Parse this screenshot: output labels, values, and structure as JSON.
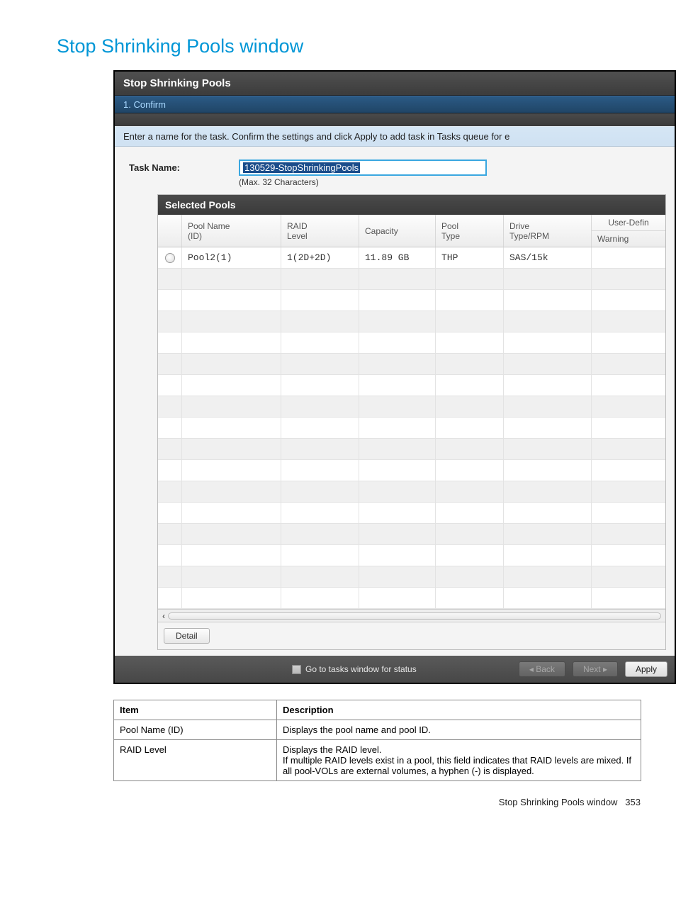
{
  "page": {
    "title": "Stop Shrinking Pools window",
    "footer_text": "Stop Shrinking Pools window",
    "page_number": "353"
  },
  "window": {
    "title": "Stop Shrinking Pools",
    "step_label": "1. Confirm",
    "instruction": "Enter a name for the task. Confirm the settings and click Apply to add task in Tasks queue for e",
    "task_name_label": "Task Name:",
    "task_name_value": "130529-StopShrinkingPools",
    "task_name_hint": "(Max. 32 Characters)",
    "panel_title": "Selected Pools",
    "columns": {
      "pool_name": "Pool Name (ID)",
      "raid": "RAID Level",
      "capacity": "Capacity",
      "pool_type": "Pool Type",
      "drive": "Drive Type/RPM",
      "user_defined": "User-Defin",
      "warning": "Warning"
    },
    "rows": [
      {
        "name": "Pool2(1)",
        "raid": "1(2D+2D)",
        "capacity": "11.89 GB",
        "type": "THP",
        "drive": "SAS/15k",
        "warning": ""
      }
    ],
    "empty_row_count": 16,
    "detail_button": "Detail",
    "go_to_tasks": "Go to tasks window for status",
    "back": "◂ Back",
    "next": "Next ▸",
    "apply": "Apply"
  },
  "description_table": {
    "header_item": "Item",
    "header_desc": "Description",
    "rows": [
      {
        "item": "Pool Name (ID)",
        "desc": "Displays the pool name and pool ID."
      },
      {
        "item": "RAID Level",
        "desc": "Displays the RAID level.\nIf multiple RAID levels exist in a pool, this field indicates that RAID levels are mixed. If all pool-VOLs are external volumes, a hyphen (-) is displayed."
      }
    ]
  },
  "style": {
    "title_color": "#0096d6"
  }
}
